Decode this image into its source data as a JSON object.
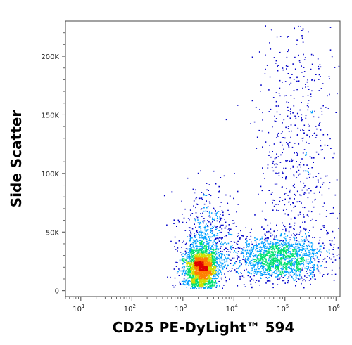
{
  "chart_data": {
    "type": "scatter",
    "plot_style": "flow-cytometry density dot plot",
    "xlabel": "CD25 PE-DyLight™ 594",
    "ylabel": "Side Scatter",
    "x_scale": "log",
    "xlim": [
      5,
      1200000
    ],
    "ylim": [
      -5000,
      230000
    ],
    "x_ticks": [
      {
        "value": 10,
        "label": "10",
        "exp": "1"
      },
      {
        "value": 100,
        "label": "10",
        "exp": "2"
      },
      {
        "value": 1000,
        "label": "10",
        "exp": "3"
      },
      {
        "value": 10000,
        "label": "10",
        "exp": "4"
      },
      {
        "value": 100000,
        "label": "10",
        "exp": "5"
      },
      {
        "value": 1000000,
        "label": "10",
        "exp": "6"
      }
    ],
    "y_ticks": [
      {
        "value": 0,
        "label": "0"
      },
      {
        "value": 50000,
        "label": "50K"
      },
      {
        "value": 100000,
        "label": "100K"
      },
      {
        "value": 150000,
        "label": "150K"
      },
      {
        "value": 200000,
        "label": "200K"
      }
    ],
    "grid": false,
    "legend": "none",
    "populations": [
      {
        "x_log_center": 3.35,
        "x_log_sd": 0.16,
        "y_center": 20000,
        "y_sd": 9000,
        "events": 1900
      },
      {
        "x_log_center": 3.45,
        "x_log_sd": 0.28,
        "y_center": 40000,
        "y_sd": 22000,
        "events": 700
      },
      {
        "x_log_center": 4.9,
        "x_log_sd": 0.45,
        "y_center": 28000,
        "y_sd": 9000,
        "events": 1500
      },
      {
        "x_log_center": 5.2,
        "x_log_sd": 0.4,
        "y_center": 120000,
        "y_sd": 55000,
        "events": 600
      }
    ],
    "density_colors": [
      "#0000c8",
      "#00a0ff",
      "#00e070",
      "#d0e000",
      "#ff8000",
      "#e00000"
    ]
  }
}
